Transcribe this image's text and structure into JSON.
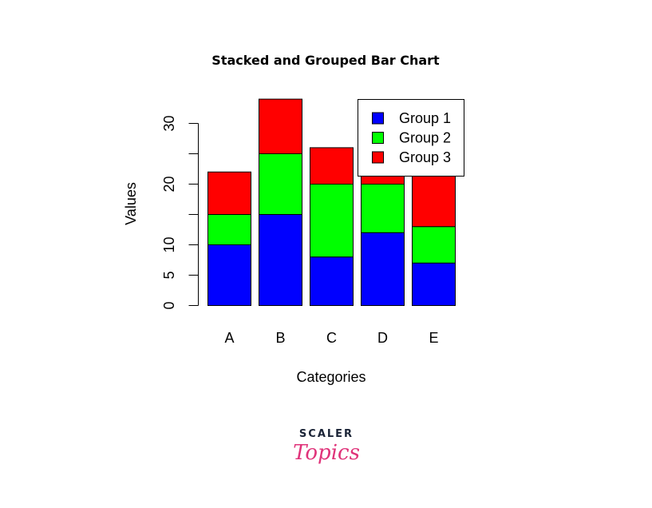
{
  "chart_data": {
    "type": "bar",
    "stacked": true,
    "title": "Stacked and Grouped Bar Chart",
    "xlabel": "Categories",
    "ylabel": "Values",
    "categories": [
      "A",
      "B",
      "C",
      "D",
      "E"
    ],
    "series": [
      {
        "name": "Group 1",
        "color": "#0000ff",
        "values": [
          10,
          15,
          8,
          12,
          7
        ]
      },
      {
        "name": "Group 2",
        "color": "#00ff00",
        "values": [
          5,
          10,
          12,
          8,
          6
        ]
      },
      {
        "name": "Group 3",
        "color": "#ff0000",
        "values": [
          7,
          9,
          6,
          12,
          12
        ]
      }
    ],
    "yticks": [
      0,
      5,
      10,
      15,
      20,
      25,
      30
    ],
    "ytick_labels": [
      "0",
      "5",
      "10",
      "",
      "20",
      "",
      "30"
    ],
    "ylim": [
      0,
      34
    ],
    "legend_position": "top-right",
    "grid": false
  },
  "branding": {
    "top": "SCALER",
    "bottom": "Topics"
  }
}
